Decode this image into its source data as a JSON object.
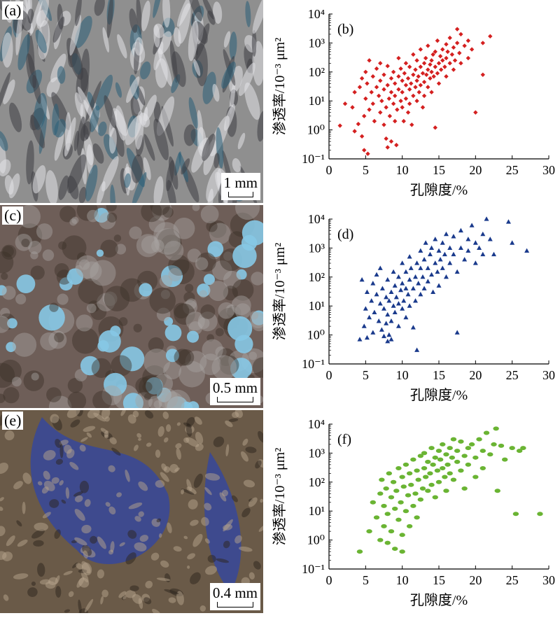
{
  "photos": [
    {
      "label": "(a)",
      "scale": "1 mm",
      "palette": {
        "base": "#8f8f8f",
        "light": "#e4e4e8",
        "dark": "#3e3e44",
        "pore": "#2a5f78"
      }
    },
    {
      "label": "(c)",
      "scale": "0.5 mm",
      "palette": {
        "base": "#6e5e58",
        "light": "#a8a5a2",
        "dark": "#3c3029",
        "pore": "#86c8e6"
      }
    },
    {
      "label": "(e)",
      "scale": "0.4 mm",
      "palette": {
        "base": "#6a5a48",
        "light": "#b6a48c",
        "dark": "#2c231c",
        "pore": "#3e4a8e"
      }
    }
  ],
  "chart_data": [
    {
      "type": "scatter",
      "label": "(b)",
      "marker": "diamond",
      "color": "#d42020",
      "xlabel": "孔隙度/%",
      "ylabel": "渗透率/10⁻³ μm²",
      "xlim": [
        0,
        30
      ],
      "ylim": [
        0.1,
        10000
      ],
      "yscale": "log",
      "xticks": [
        "0",
        "5",
        "10",
        "15",
        "20",
        "25",
        "30"
      ],
      "yticks": [
        "10⁻¹",
        "10⁰",
        "10¹",
        "10²",
        "10³",
        "10⁴"
      ],
      "points": [
        [
          1.5,
          1.4
        ],
        [
          2.2,
          8
        ],
        [
          3.2,
          6
        ],
        [
          3.5,
          0.9
        ],
        [
          3.5,
          20
        ],
        [
          4.0,
          1.6
        ],
        [
          4.2,
          30
        ],
        [
          4.5,
          0.6
        ],
        [
          4.5,
          60
        ],
        [
          4.8,
          3
        ],
        [
          4.8,
          0.2
        ],
        [
          5.0,
          12
        ],
        [
          5.0,
          100
        ],
        [
          5.2,
          40
        ],
        [
          5.3,
          0.15
        ],
        [
          5.5,
          5
        ],
        [
          5.5,
          250
        ],
        [
          5.8,
          20
        ],
        [
          6.0,
          70
        ],
        [
          6.0,
          8
        ],
        [
          6.2,
          2
        ],
        [
          6.5,
          30
        ],
        [
          6.5,
          130
        ],
        [
          6.8,
          15
        ],
        [
          7.0,
          4
        ],
        [
          7.0,
          200
        ],
        [
          7.0,
          50
        ],
        [
          7.2,
          10
        ],
        [
          7.5,
          25
        ],
        [
          7.5,
          80
        ],
        [
          7.5,
          1.5
        ],
        [
          7.8,
          6
        ],
        [
          7.8,
          0.5
        ],
        [
          8.0,
          35
        ],
        [
          8.0,
          160
        ],
        [
          8.0,
          0.25
        ],
        [
          8.2,
          12
        ],
        [
          8.3,
          3
        ],
        [
          8.5,
          60
        ],
        [
          8.5,
          20
        ],
        [
          8.5,
          0.4
        ],
        [
          8.8,
          8
        ],
        [
          8.8,
          100
        ],
        [
          9.0,
          40
        ],
        [
          9.0,
          2
        ],
        [
          9.0,
          15
        ],
        [
          9.2,
          0.3
        ],
        [
          9.3,
          5
        ],
        [
          9.5,
          70
        ],
        [
          9.5,
          25
        ],
        [
          9.5,
          300
        ],
        [
          9.8,
          10
        ],
        [
          9.8,
          130
        ],
        [
          10.0,
          50
        ],
        [
          10.0,
          6
        ],
        [
          10.0,
          20
        ],
        [
          10.2,
          2
        ],
        [
          10.3,
          90
        ],
        [
          10.5,
          35
        ],
        [
          10.5,
          12
        ],
        [
          10.5,
          200
        ],
        [
          10.8,
          60
        ],
        [
          10.8,
          4
        ],
        [
          11.0,
          25
        ],
        [
          11.0,
          150
        ],
        [
          11.0,
          8
        ],
        [
          11.2,
          40
        ],
        [
          11.3,
          1.5
        ],
        [
          11.5,
          80
        ],
        [
          11.5,
          15
        ],
        [
          11.5,
          400
        ],
        [
          11.8,
          30
        ],
        [
          11.8,
          120
        ],
        [
          12.0,
          50
        ],
        [
          12.0,
          10
        ],
        [
          12.0,
          250
        ],
        [
          12.2,
          70
        ],
        [
          12.3,
          20
        ],
        [
          12.5,
          150
        ],
        [
          12.5,
          35
        ],
        [
          12.5,
          600
        ],
        [
          12.8,
          90
        ],
        [
          12.8,
          6
        ],
        [
          13.0,
          200
        ],
        [
          13.0,
          45
        ],
        [
          13.0,
          15
        ],
        [
          13.2,
          300
        ],
        [
          13.3,
          80
        ],
        [
          13.5,
          120
        ],
        [
          13.5,
          30
        ],
        [
          13.5,
          800
        ],
        [
          13.8,
          180
        ],
        [
          13.8,
          60
        ],
        [
          14.0,
          250
        ],
        [
          14.0,
          100
        ],
        [
          14.0,
          20
        ],
        [
          14.2,
          400
        ],
        [
          14.3,
          70
        ],
        [
          14.5,
          150
        ],
        [
          14.5,
          500
        ],
        [
          14.5,
          1.2
        ],
        [
          14.8,
          90
        ],
        [
          14.8,
          1200
        ],
        [
          15.0,
          200
        ],
        [
          15.0,
          40
        ],
        [
          15.2,
          350
        ],
        [
          15.3,
          120
        ],
        [
          15.5,
          600
        ],
        [
          15.5,
          250
        ],
        [
          15.8,
          150
        ],
        [
          16.0,
          900
        ],
        [
          16.0,
          300
        ],
        [
          16.0,
          70
        ],
        [
          16.2,
          500
        ],
        [
          16.5,
          200
        ],
        [
          16.5,
          1500
        ],
        [
          16.8,
          400
        ],
        [
          17.0,
          700
        ],
        [
          17.0,
          120
        ],
        [
          17.2,
          250
        ],
        [
          17.5,
          1000
        ],
        [
          17.5,
          3000
        ],
        [
          17.8,
          450
        ],
        [
          18.0,
          200
        ],
        [
          18.0,
          2000
        ],
        [
          18.5,
          800
        ],
        [
          19.0,
          1200
        ],
        [
          19.0,
          300
        ],
        [
          19.5,
          600
        ],
        [
          20.0,
          4
        ],
        [
          21.0,
          80
        ],
        [
          21.0,
          1000
        ],
        [
          22.0,
          1700
        ]
      ]
    },
    {
      "type": "scatter",
      "label": "(d)",
      "marker": "triangle",
      "color": "#1a3a8c",
      "xlabel": "孔隙度/%",
      "ylabel": "渗透率/10⁻³ μm²",
      "xlim": [
        0,
        30
      ],
      "ylim": [
        0.1,
        10000
      ],
      "yscale": "log",
      "xticks": [
        "0",
        "5",
        "10",
        "15",
        "20",
        "25",
        "30"
      ],
      "yticks": [
        "10⁻¹",
        "10⁰",
        "10¹",
        "10²",
        "10³",
        "10⁴"
      ],
      "points": [
        [
          4.2,
          0.7
        ],
        [
          4.5,
          80
        ],
        [
          4.8,
          2
        ],
        [
          5.0,
          8
        ],
        [
          5.2,
          0.8
        ],
        [
          5.2,
          30
        ],
        [
          5.5,
          4
        ],
        [
          5.8,
          15
        ],
        [
          6.0,
          1.2
        ],
        [
          6.0,
          60
        ],
        [
          6.2,
          6
        ],
        [
          6.5,
          25
        ],
        [
          6.5,
          120
        ],
        [
          6.8,
          3
        ],
        [
          7.0,
          12
        ],
        [
          7.0,
          200
        ],
        [
          7.2,
          1.5
        ],
        [
          7.3,
          40
        ],
        [
          7.5,
          8
        ],
        [
          7.5,
          0.9
        ],
        [
          7.8,
          20
        ],
        [
          7.8,
          2.5
        ],
        [
          8.0,
          5
        ],
        [
          8.0,
          0.6
        ],
        [
          8.0,
          80
        ],
        [
          8.2,
          1
        ],
        [
          8.2,
          15
        ],
        [
          8.5,
          30
        ],
        [
          8.5,
          3
        ],
        [
          8.5,
          0.7
        ],
        [
          8.8,
          10
        ],
        [
          8.8,
          150
        ],
        [
          9.0,
          50
        ],
        [
          9.0,
          6
        ],
        [
          9.2,
          20
        ],
        [
          9.5,
          2
        ],
        [
          9.5,
          100
        ],
        [
          9.5,
          12
        ],
        [
          9.8,
          35
        ],
        [
          10.0,
          8
        ],
        [
          10.0,
          60
        ],
        [
          10.0,
          300
        ],
        [
          10.2,
          15
        ],
        [
          10.5,
          40
        ],
        [
          10.5,
          4
        ],
        [
          10.5,
          150
        ],
        [
          10.8,
          25
        ],
        [
          11.0,
          80
        ],
        [
          11.0,
          10
        ],
        [
          11.0,
          500
        ],
        [
          11.2,
          200
        ],
        [
          11.5,
          40
        ],
        [
          11.5,
          1.8
        ],
        [
          11.8,
          100
        ],
        [
          11.8,
          15
        ],
        [
          12.0,
          300
        ],
        [
          12.0,
          0.3
        ],
        [
          12.2,
          60
        ],
        [
          12.5,
          200
        ],
        [
          12.5,
          25
        ],
        [
          12.5,
          800
        ],
        [
          12.8,
          100
        ],
        [
          13.0,
          400
        ],
        [
          13.0,
          40
        ],
        [
          13.2,
          1500
        ],
        [
          13.5,
          200
        ],
        [
          13.5,
          70
        ],
        [
          13.8,
          600
        ],
        [
          14.0,
          120
        ],
        [
          14.0,
          1000
        ],
        [
          14.2,
          30
        ],
        [
          14.5,
          300
        ],
        [
          14.5,
          2000
        ],
        [
          14.8,
          150
        ],
        [
          15.0,
          800
        ],
        [
          15.0,
          50
        ],
        [
          15.2,
          400
        ],
        [
          15.5,
          1500
        ],
        [
          15.5,
          200
        ],
        [
          15.8,
          600
        ],
        [
          16.0,
          3000
        ],
        [
          16.0,
          100
        ],
        [
          16.5,
          1000
        ],
        [
          16.5,
          300
        ],
        [
          17.0,
          2500
        ],
        [
          17.0,
          600
        ],
        [
          17.5,
          1.2
        ],
        [
          17.5,
          150
        ],
        [
          18.0,
          1000
        ],
        [
          18.0,
          4000
        ],
        [
          18.5,
          400
        ],
        [
          19.0,
          2000
        ],
        [
          19.0,
          800
        ],
        [
          19.5,
          6000
        ],
        [
          20.0,
          1500
        ],
        [
          20.0,
          300
        ],
        [
          20.5,
          1000
        ],
        [
          21.0,
          3000
        ],
        [
          21.0,
          600
        ],
        [
          21.5,
          10000
        ],
        [
          22.0,
          2000
        ],
        [
          22.5,
          600
        ],
        [
          24.5,
          8000
        ],
        [
          25.0,
          1500
        ],
        [
          27.0,
          800
        ]
      ]
    },
    {
      "type": "scatter",
      "label": "(f)",
      "marker": "ellipse",
      "color": "#6ab433",
      "xlabel": "孔隙度/%",
      "ylabel": "渗透率/10⁻³ μm²",
      "xlim": [
        0,
        30
      ],
      "ylim": [
        0.1,
        10000
      ],
      "yscale": "log",
      "xticks": [
        "0",
        "5",
        "10",
        "15",
        "20",
        "25",
        "30"
      ],
      "yticks": [
        "10⁻¹",
        "10⁰",
        "10¹",
        "10²",
        "10³",
        "10⁴"
      ],
      "points": [
        [
          4.2,
          0.4
        ],
        [
          5.5,
          2
        ],
        [
          6.0,
          20
        ],
        [
          6.5,
          6
        ],
        [
          7.0,
          1
        ],
        [
          7.0,
          40
        ],
        [
          7.2,
          120
        ],
        [
          7.5,
          3
        ],
        [
          7.5,
          15
        ],
        [
          7.8,
          60
        ],
        [
          8.0,
          0.8
        ],
        [
          8.0,
          8
        ],
        [
          8.2,
          200
        ],
        [
          8.5,
          30
        ],
        [
          8.5,
          2
        ],
        [
          8.8,
          100
        ],
        [
          9.0,
          12
        ],
        [
          9.0,
          0.5
        ],
        [
          9.2,
          50
        ],
        [
          9.5,
          300
        ],
        [
          9.5,
          5
        ],
        [
          9.8,
          20
        ],
        [
          10.0,
          150
        ],
        [
          10.0,
          1.5
        ],
        [
          10.0,
          0.4
        ],
        [
          10.2,
          70
        ],
        [
          10.5,
          10
        ],
        [
          10.5,
          400
        ],
        [
          10.8,
          35
        ],
        [
          11.0,
          200
        ],
        [
          11.0,
          3
        ],
        [
          11.2,
          80
        ],
        [
          11.5,
          15
        ],
        [
          11.5,
          600
        ],
        [
          11.8,
          40
        ],
        [
          12.0,
          250
        ],
        [
          12.0,
          6
        ],
        [
          12.2,
          120
        ],
        [
          12.5,
          800
        ],
        [
          12.5,
          25
        ],
        [
          12.8,
          60
        ],
        [
          13.0,
          300
        ],
        [
          13.0,
          1000
        ],
        [
          13.2,
          150
        ],
        [
          13.5,
          50
        ],
        [
          13.5,
          500
        ],
        [
          13.8,
          200
        ],
        [
          14.0,
          1500
        ],
        [
          14.0,
          80
        ],
        [
          14.2,
          400
        ],
        [
          14.5,
          700
        ],
        [
          14.5,
          30
        ],
        [
          14.8,
          250
        ],
        [
          15.0,
          1200
        ],
        [
          15.0,
          100
        ],
        [
          15.2,
          600
        ],
        [
          15.5,
          300
        ],
        [
          15.5,
          2000
        ],
        [
          15.8,
          150
        ],
        [
          16.0,
          900
        ],
        [
          16.0,
          50
        ],
        [
          16.2,
          400
        ],
        [
          16.5,
          1500
        ],
        [
          16.5,
          200
        ],
        [
          16.8,
          700
        ],
        [
          17.0,
          3000
        ],
        [
          17.0,
          120
        ],
        [
          17.5,
          500
        ],
        [
          17.5,
          1200
        ],
        [
          18.0,
          250
        ],
        [
          18.0,
          2500
        ],
        [
          18.5,
          800
        ],
        [
          18.5,
          60
        ],
        [
          19.0,
          1500
        ],
        [
          19.0,
          400
        ],
        [
          19.5,
          2000
        ],
        [
          20.0,
          700
        ],
        [
          20.0,
          150
        ],
        [
          20.5,
          3000
        ],
        [
          21.0,
          1200
        ],
        [
          21.0,
          300
        ],
        [
          21.5,
          5000
        ],
        [
          22.0,
          900
        ],
        [
          22.5,
          2000
        ],
        [
          22.8,
          7000
        ],
        [
          23.0,
          50
        ],
        [
          23.5,
          1800
        ],
        [
          24.0,
          600
        ],
        [
          25.0,
          1500
        ],
        [
          25.5,
          8
        ],
        [
          26.0,
          1200
        ],
        [
          26.5,
          1500
        ],
        [
          28.8,
          8
        ]
      ]
    }
  ]
}
